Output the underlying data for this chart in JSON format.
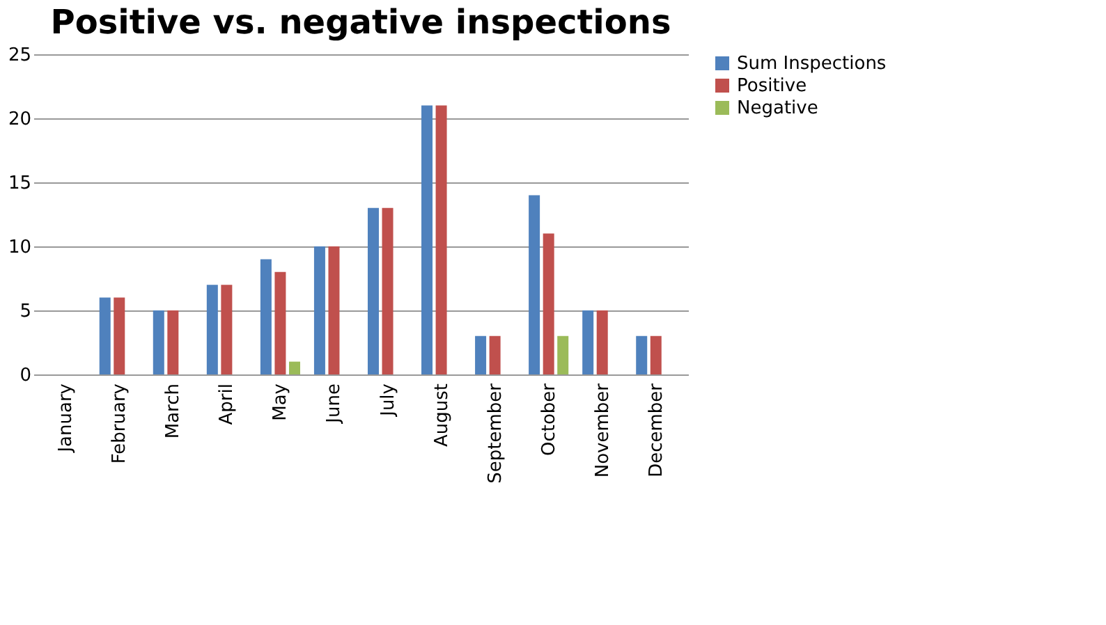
{
  "chart_data": {
    "type": "bar",
    "title": "Positive vs. negative inspections",
    "categories": [
      "January",
      "February",
      "March",
      "April",
      "May",
      "June",
      "July",
      "August",
      "September",
      "October",
      "November",
      "December"
    ],
    "series": [
      {
        "name": "Sum Inspections",
        "color": "#4f81bd",
        "values": [
          0,
          6,
          5,
          7,
          9,
          10,
          13,
          21,
          3,
          14,
          5,
          3
        ]
      },
      {
        "name": "Positive",
        "color": "#c0504d",
        "values": [
          0,
          6,
          5,
          7,
          8,
          10,
          13,
          21,
          3,
          11,
          5,
          3
        ]
      },
      {
        "name": "Negative",
        "color": "#9bbb59",
        "values": [
          0,
          0,
          0,
          0,
          1,
          0,
          0,
          0,
          0,
          3,
          0,
          0
        ]
      }
    ],
    "ylim": [
      0,
      25
    ],
    "yticks": [
      0,
      5,
      10,
      15,
      20,
      25
    ],
    "grid": "y",
    "legend": "right"
  }
}
